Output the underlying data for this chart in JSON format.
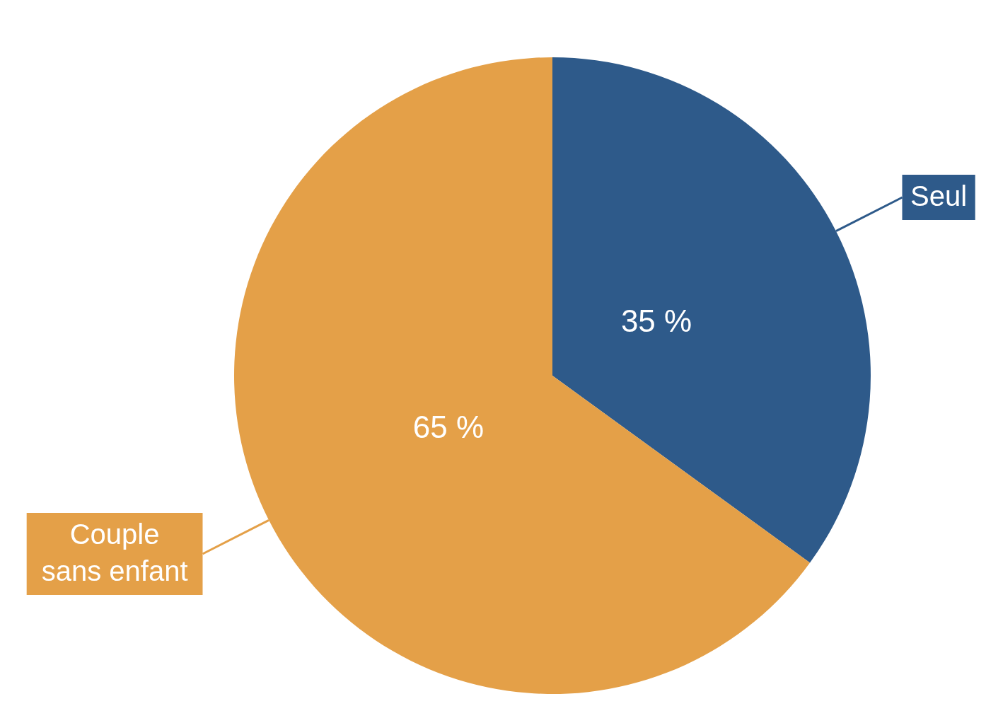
{
  "chart_data": {
    "type": "pie",
    "categories": [
      "Seul",
      "Couple sans enfant"
    ],
    "values": [
      35,
      65
    ],
    "colors": [
      "#2e5a8a",
      "#e4a048"
    ],
    "value_labels": [
      "35 %",
      "65 %"
    ],
    "legend": false
  }
}
